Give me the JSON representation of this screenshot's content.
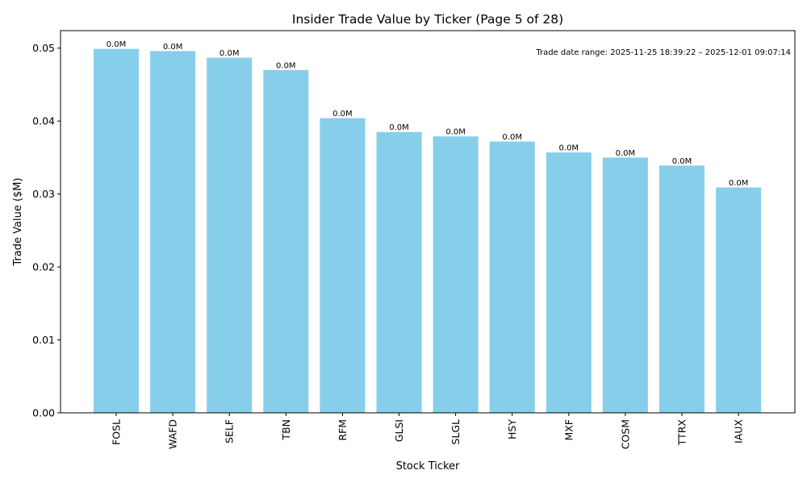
{
  "chart_data": {
    "type": "bar",
    "title": "Insider Trade Value by Ticker (Page 5 of 28)",
    "xlabel": "Stock Ticker",
    "ylabel": "Trade Value ($M)",
    "categories": [
      "FOSL",
      "WAFD",
      "SELF",
      "TBN",
      "RFM",
      "GLSI",
      "SLGL",
      "HSY",
      "MXF",
      "COSM",
      "TTRX",
      "IAUX"
    ],
    "values": [
      0.0499,
      0.0496,
      0.0487,
      0.047,
      0.0404,
      0.0385,
      0.0379,
      0.0372,
      0.0357,
      0.035,
      0.0339,
      0.0309
    ],
    "data_labels": [
      "0.0M",
      "0.0M",
      "0.0M",
      "0.0M",
      "0.0M",
      "0.0M",
      "0.0M",
      "0.0M",
      "0.0M",
      "0.0M",
      "0.0M",
      "0.0M"
    ],
    "yticks": [
      "0.00",
      "0.01",
      "0.02",
      "0.03",
      "0.04",
      "0.05"
    ],
    "ylim": [
      0,
      0.0524
    ],
    "grid": false,
    "bar_color": "#87CEEB",
    "annotation": "Trade date range: 2025-11-25 18:39:22 – 2025-12-01 09:07:14"
  }
}
